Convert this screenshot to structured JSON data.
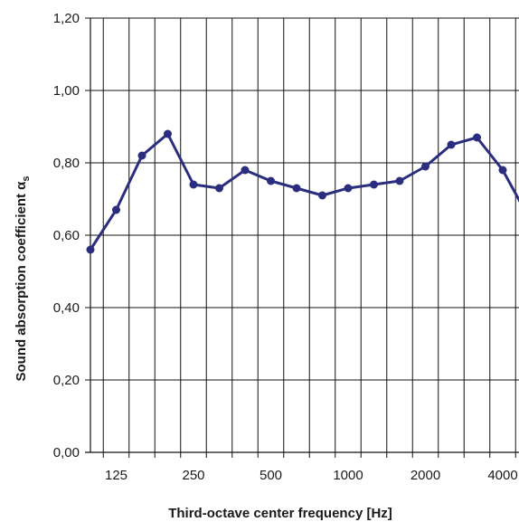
{
  "chart_data": {
    "type": "line",
    "title": "",
    "xlabel": "Third-octave center frequency [Hz]",
    "ylabel": "Sound absorption coefficient α",
    "ylabel_subscript": "s",
    "ylim": [
      0,
      1.2
    ],
    "y_ticks": [
      "0,00",
      "0,20",
      "0,40",
      "0,60",
      "0,80",
      "1,00",
      "1,20"
    ],
    "x_tick_labels": [
      {
        "index": 1,
        "label": "125"
      },
      {
        "index": 4,
        "label": "250"
      },
      {
        "index": 7,
        "label": "500"
      },
      {
        "index": 10,
        "label": "1000"
      },
      {
        "index": 13,
        "label": "2000"
      },
      {
        "index": 16,
        "label": "4000"
      }
    ],
    "grid": true,
    "line_color": "#2b2d7f",
    "series": [
      {
        "x": [
          100,
          125,
          160,
          200,
          250,
          315,
          400,
          500,
          630,
          800,
          1000,
          1250,
          1600,
          2000,
          2500,
          3150,
          4000,
          5000
        ],
        "values": [
          0.56,
          0.67,
          0.82,
          0.88,
          0.74,
          0.73,
          0.78,
          0.75,
          0.73,
          0.71,
          0.73,
          0.74,
          0.75,
          0.79,
          0.85,
          0.87,
          0.78,
          0.65
        ]
      }
    ]
  }
}
